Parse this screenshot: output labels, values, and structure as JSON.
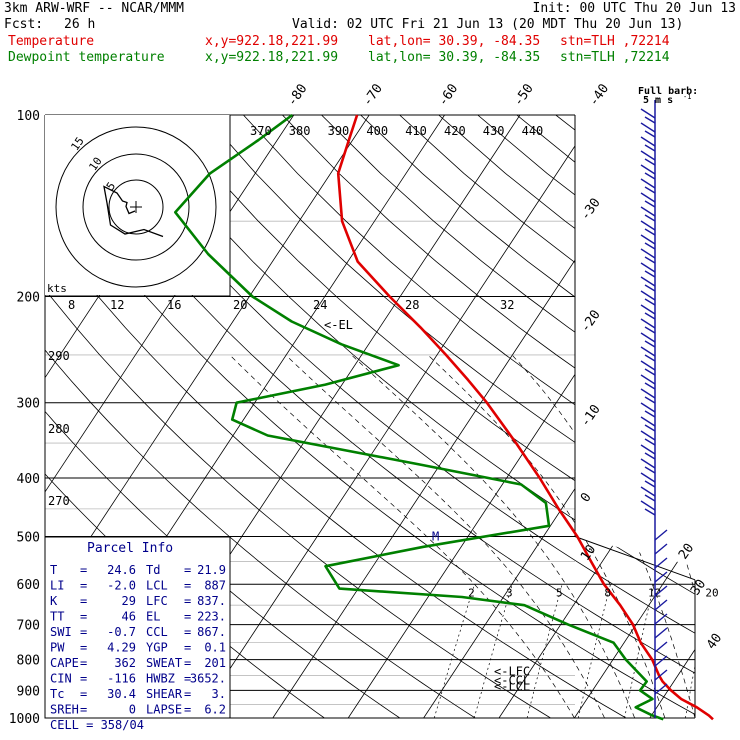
{
  "header": {
    "model": "3km ARW-WRF -- NCAR/MMM",
    "init": "Init: 00 UTC Thu 20 Jun 13",
    "fcst_label": "Fcst:",
    "fcst_value": "26 h",
    "valid": "Valid: 02 UTC Fri 21 Jun 13 (20 MDT Thu 20 Jun 13)",
    "lines": [
      {
        "name": "Temperature",
        "xy": "x,y=922.18,221.99",
        "latlon": "lat,lon= 30.39, -84.35",
        "stn": "stn=TLH ,72214",
        "color": "#e00000"
      },
      {
        "name": "Dewpoint temperature",
        "xy": "x,y=922.18,221.99",
        "latlon": "lat,lon= 30.39, -84.35",
        "stn": "stn=TLH ,72214",
        "color": "#008000"
      }
    ]
  },
  "chart_data": {
    "type": "line",
    "title": "",
    "ylabel": "",
    "pressure_levels": [
      100,
      200,
      300,
      400,
      500,
      600,
      700,
      800,
      900,
      1000
    ],
    "ylim": [
      100,
      1000
    ],
    "isotherm_labels": [
      -80,
      -70,
      -60,
      -50,
      -40,
      -30,
      -20,
      -10,
      0,
      10,
      20,
      30,
      40
    ],
    "theta_labels": [
      370,
      380,
      390,
      400,
      410,
      420,
      430,
      440
    ],
    "theta_left_labels": [
      290,
      280,
      270
    ],
    "mixing_ratio_labels": [
      2,
      3,
      5,
      8,
      12,
      20
    ],
    "series": [
      {
        "name": "Temperature",
        "color": "#e00000",
        "points": [
          [
            1005,
            28.5
          ],
          [
            990,
            27.6
          ],
          [
            960,
            25.3
          ],
          [
            930,
            22.5
          ],
          [
            900,
            20.4
          ],
          [
            870,
            18.5
          ],
          [
            850,
            17.5
          ],
          [
            800,
            15.2
          ],
          [
            750,
            12.2
          ],
          [
            700,
            9.6
          ],
          [
            650,
            6.2
          ],
          [
            600,
            2.2
          ],
          [
            550,
            -1.5
          ],
          [
            500,
            -5.5
          ],
          [
            450,
            -10.4
          ],
          [
            400,
            -15.6
          ],
          [
            350,
            -21.8
          ],
          [
            300,
            -29.2
          ],
          [
            275,
            -33.7
          ],
          [
            250,
            -38.8
          ],
          [
            225,
            -44.6
          ],
          [
            200,
            -51.4
          ],
          [
            175,
            -58.7
          ],
          [
            150,
            -64.3
          ],
          [
            125,
            -69.0
          ],
          [
            110,
            -70.5
          ],
          [
            100,
            -71.6
          ]
        ]
      },
      {
        "name": "Dewpoint temperature",
        "color": "#008000",
        "points": [
          [
            1005,
            21.9
          ],
          [
            990,
            20.1
          ],
          [
            960,
            17.2
          ],
          [
            930,
            18.7
          ],
          [
            900,
            16.3
          ],
          [
            870,
            16.4
          ],
          [
            850,
            15.1
          ],
          [
            800,
            11.7
          ],
          [
            750,
            8.6
          ],
          [
            700,
            1.0
          ],
          [
            650,
            -6.5
          ],
          [
            630,
            -15.5
          ],
          [
            610,
            -32.5
          ],
          [
            560,
            -36.3
          ],
          [
            520,
            -25.0
          ],
          [
            480,
            -10.2
          ],
          [
            440,
            -12.6
          ],
          [
            410,
            -17.5
          ],
          [
            380,
            -32.6
          ],
          [
            340,
            -55.4
          ],
          [
            320,
            -61.5
          ],
          [
            300,
            -62.4
          ],
          [
            280,
            -52.2
          ],
          [
            260,
            -44.2
          ],
          [
            240,
            -53.6
          ],
          [
            220,
            -62.2
          ],
          [
            200,
            -69.6
          ],
          [
            170,
            -79.2
          ],
          [
            145,
            -87.2
          ],
          [
            125,
            -86.0
          ],
          [
            110,
            -82.5
          ],
          [
            100,
            -80.2
          ]
        ]
      }
    ],
    "markers": [
      {
        "label": "<-EL",
        "p": 223
      },
      {
        "label": "<-LFC",
        "p": 837
      },
      {
        "label": "<-CCL",
        "p": 867
      },
      {
        "label": "<-LCL",
        "p": 887
      },
      {
        "label": "M",
        "p": 500
      }
    ],
    "hodograph": {
      "rings": [
        "5",
        "10",
        "15"
      ],
      "unit": "kts",
      "speed_labels": [
        8,
        12,
        16,
        20,
        24,
        28,
        32
      ],
      "points": [
        [
          54,
          59
        ],
        [
          16,
          45
        ],
        [
          -22,
          54
        ],
        [
          -51,
          36
        ],
        [
          -58,
          -8
        ],
        [
          -64,
          -41
        ],
        [
          -38,
          -28
        ],
        [
          -27,
          -12
        ],
        [
          -18,
          -9
        ],
        [
          -20,
          -1
        ],
        [
          -14,
          13
        ],
        [
          -2,
          8
        ]
      ]
    },
    "wind_barbs": {
      "title": "Full barb:",
      "unit": "5 m s",
      "unit_exp": "-1"
    }
  },
  "parcel_info": {
    "title": "Parcel Info",
    "rows": [
      [
        "T",
        "24.6",
        "Td",
        "21.9"
      ],
      [
        "LI",
        "-2.0",
        "LCL",
        "887"
      ],
      [
        "K",
        "29",
        "LFC",
        "837."
      ],
      [
        "TT",
        "46",
        "EL",
        "223."
      ],
      [
        "SWI",
        "-0.7",
        "CCL",
        "867."
      ],
      [
        "PW",
        "4.29",
        "YGP",
        "0.1"
      ],
      [
        "CAPE",
        "362",
        "SWEAT",
        "201"
      ],
      [
        "CIN",
        "-116",
        "HWBZ",
        "3652."
      ],
      [
        "Tc",
        "30.4",
        "SHEAR",
        "3."
      ],
      [
        "SREH",
        "0",
        "LAPSE",
        "6.2"
      ]
    ],
    "cell": "CELL = 358/04"
  }
}
